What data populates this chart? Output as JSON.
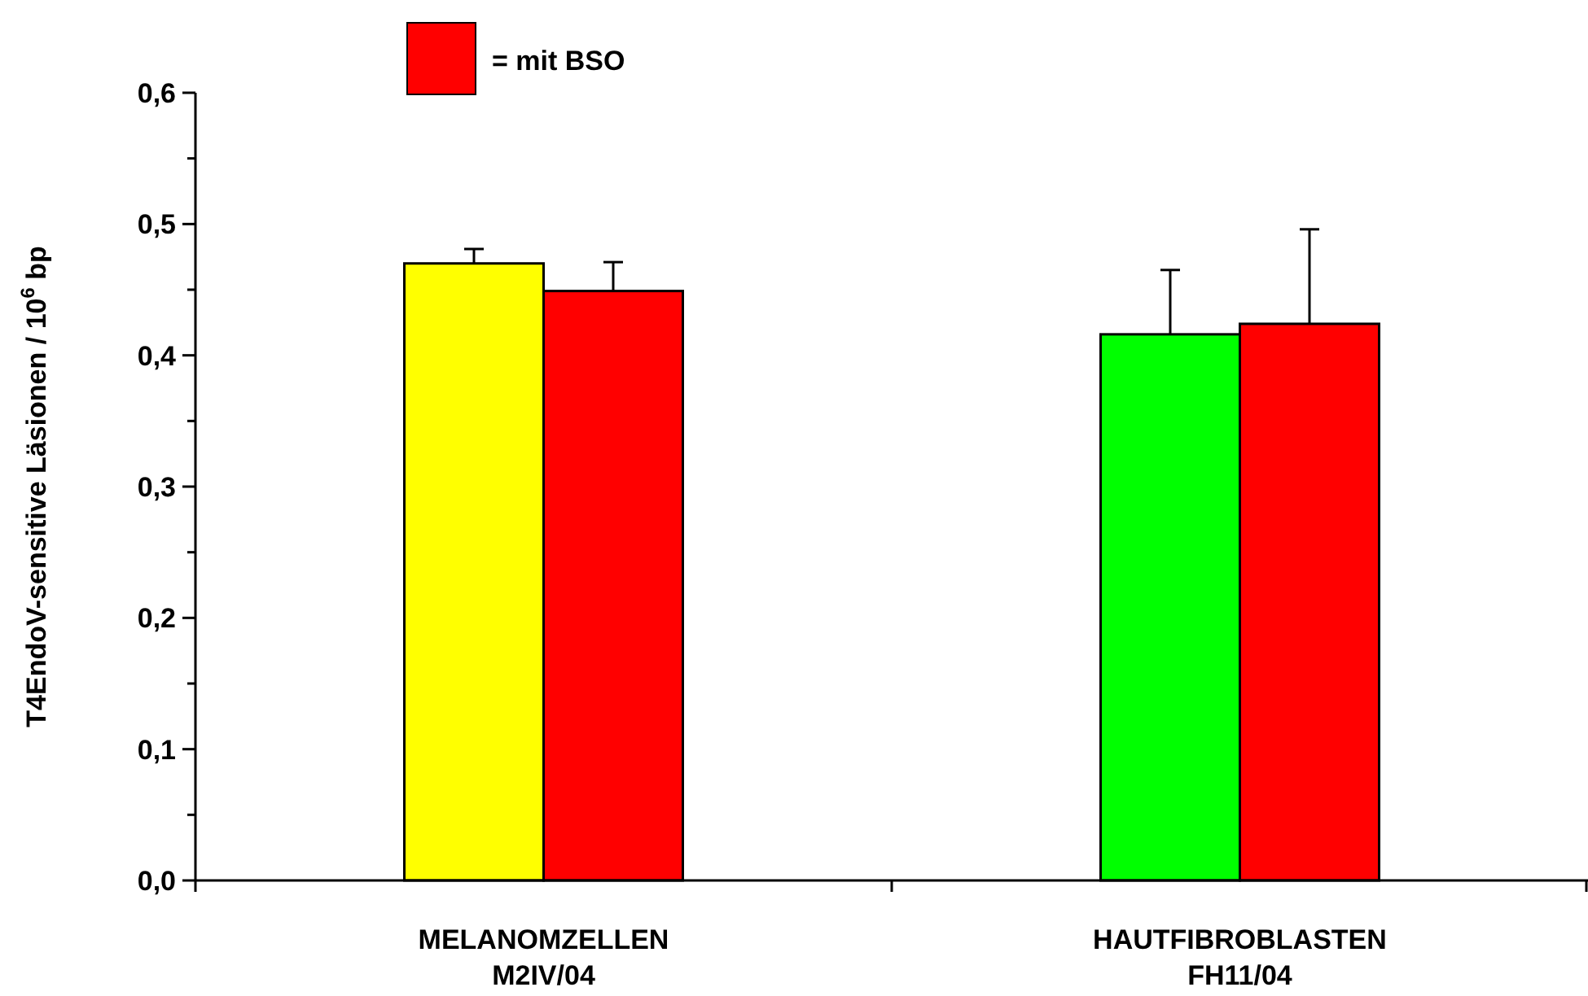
{
  "chart_data": {
    "type": "bar",
    "ylabel": "T4EndoV-sensitive Läsionen / 10$^{6}$ bp",
    "categories": [
      "MELANOMZELLEN\nM2IV/04",
      "HAUTFIBROBLASTEN\nFH11/04"
    ],
    "series": [
      {
        "colors": [
          "#ffff00",
          "#00ff00"
        ],
        "values": [
          0.47,
          0.416
        ],
        "errors": [
          [
            0.47,
            0.481
          ],
          [
            0.416,
            0.465
          ]
        ]
      },
      {
        "name": "= mit BSO",
        "color": "#ff0000",
        "values": [
          0.449,
          0.424
        ],
        "errors": [
          [
            0.449,
            0.471
          ],
          [
            0.424,
            0.496
          ]
        ]
      }
    ],
    "ylim": [
      0,
      0.6
    ],
    "yticks": [
      {
        "value": 0,
        "label": "0,0"
      },
      {
        "value": 0.05,
        "label": null
      },
      {
        "value": 0.1,
        "label": "0,1"
      },
      {
        "value": 0.15,
        "label": null
      },
      {
        "value": 0.2,
        "label": "0,2"
      },
      {
        "value": 0.25,
        "label": null
      },
      {
        "value": 0.3,
        "label": "0,3"
      },
      {
        "value": 0.35,
        "label": null
      },
      {
        "value": 0.4,
        "label": "0,4"
      },
      {
        "value": 0.45,
        "label": null
      },
      {
        "value": 0.5,
        "label": "0,5"
      },
      {
        "value": 0.55,
        "label": null
      },
      {
        "value": 0.6,
        "label": "0,6"
      }
    ],
    "grid": false,
    "legend": "top"
  }
}
